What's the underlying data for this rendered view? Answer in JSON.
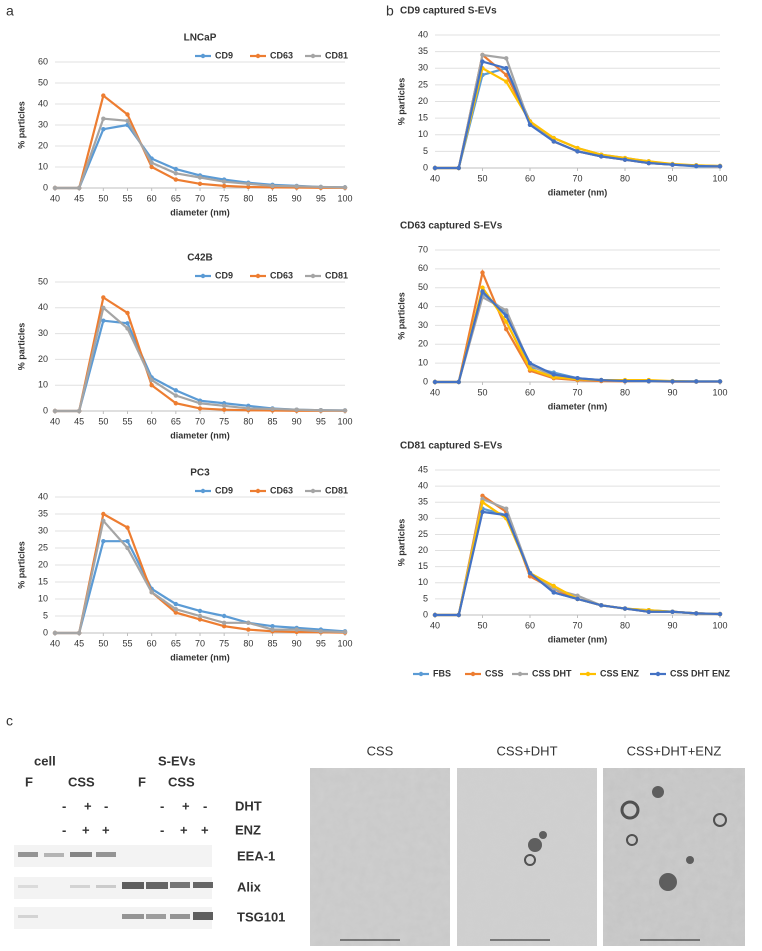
{
  "panel_labels": [
    "a",
    "b",
    "c"
  ],
  "chart_data": [
    {
      "type": "line",
      "title": "LNCaP",
      "xlabel": "diameter (nm)",
      "ylabel": "% particles",
      "legend": "top-right",
      "x": [
        40,
        45,
        50,
        55,
        60,
        65,
        70,
        75,
        80,
        85,
        90,
        95,
        100
      ],
      "xlim": [
        40,
        100
      ],
      "xticks": [
        40,
        45,
        50,
        55,
        60,
        65,
        70,
        75,
        80,
        85,
        90,
        95,
        100
      ],
      "ylim": [
        0,
        60
      ],
      "yticks": [
        0,
        10,
        20,
        30,
        40,
        50,
        60
      ],
      "series": [
        {
          "name": "CD9",
          "color": "#5b9bd5",
          "values": [
            0,
            0,
            28,
            30,
            14,
            9,
            6,
            4,
            2.5,
            1.5,
            1,
            0.5,
            0.3
          ]
        },
        {
          "name": "CD63",
          "color": "#ed7d31",
          "values": [
            0,
            0,
            44,
            35,
            10,
            4,
            2,
            1,
            0.5,
            0.3,
            0.2,
            0.1,
            0.1
          ]
        },
        {
          "name": "CD81",
          "color": "#a5a5a5",
          "values": [
            0,
            0,
            33,
            32,
            12,
            7,
            5,
            3,
            2,
            1,
            0.8,
            0.5,
            0.3
          ]
        }
      ]
    },
    {
      "type": "line",
      "title": "C42B",
      "xlabel": "diameter (nm)",
      "ylabel": "% particles",
      "legend": "top-right",
      "x": [
        40,
        45,
        50,
        55,
        60,
        65,
        70,
        75,
        80,
        85,
        90,
        95,
        100
      ],
      "xlim": [
        40,
        100
      ],
      "xticks": [
        40,
        45,
        50,
        55,
        60,
        65,
        70,
        75,
        80,
        85,
        90,
        95,
        100
      ],
      "ylim": [
        0,
        50
      ],
      "yticks": [
        0,
        10,
        20,
        30,
        40,
        50
      ],
      "series": [
        {
          "name": "CD9",
          "color": "#5b9bd5",
          "values": [
            0,
            0,
            35,
            34,
            13,
            8,
            4,
            3,
            2,
            1,
            0.5,
            0.3,
            0.2
          ]
        },
        {
          "name": "CD63",
          "color": "#ed7d31",
          "values": [
            0,
            0,
            44,
            38,
            10,
            3,
            1,
            0.5,
            0.3,
            0.2,
            0.1,
            0.1,
            0.1
          ]
        },
        {
          "name": "CD81",
          "color": "#a5a5a5",
          "values": [
            0,
            0,
            40,
            32,
            12,
            6,
            3,
            2,
            1,
            0.8,
            0.5,
            0.3,
            0.2
          ]
        }
      ]
    },
    {
      "type": "line",
      "title": "PC3",
      "xlabel": "diameter (nm)",
      "ylabel": "% particles",
      "legend": "top-right",
      "x": [
        40,
        45,
        50,
        55,
        60,
        65,
        70,
        75,
        80,
        85,
        90,
        95,
        100
      ],
      "xlim": [
        40,
        100
      ],
      "xticks": [
        40,
        45,
        50,
        55,
        60,
        65,
        70,
        75,
        80,
        85,
        90,
        95,
        100
      ],
      "ylim": [
        0,
        40
      ],
      "yticks": [
        0,
        5,
        10,
        15,
        20,
        25,
        30,
        35,
        40
      ],
      "series": [
        {
          "name": "CD9",
          "color": "#5b9bd5",
          "values": [
            0,
            0,
            27,
            27,
            13,
            8.5,
            6.5,
            5,
            3,
            2,
            1.5,
            1,
            0.5
          ]
        },
        {
          "name": "CD63",
          "color": "#ed7d31",
          "values": [
            0,
            0,
            35,
            31,
            12,
            6,
            4,
            2,
            1,
            0.5,
            0.3,
            0.2,
            0.1
          ]
        },
        {
          "name": "CD81",
          "color": "#a5a5a5",
          "values": [
            0,
            0,
            33,
            25,
            12,
            7,
            5,
            3,
            3,
            1,
            1,
            0.5,
            0.3
          ]
        }
      ]
    },
    {
      "type": "line",
      "title": "CD9 captured S-EVs",
      "xlabel": "diameter (nm)",
      "ylabel": "% particles",
      "x": [
        40,
        45,
        50,
        55,
        60,
        65,
        70,
        75,
        80,
        85,
        90,
        95,
        100
      ],
      "xlim": [
        40,
        100
      ],
      "xticks": [
        40,
        50,
        60,
        70,
        80,
        90,
        100
      ],
      "ylim": [
        0,
        40
      ],
      "yticks": [
        0,
        5,
        10,
        15,
        20,
        25,
        30,
        35,
        40
      ],
      "series": [
        {
          "color": "#5b9bd5",
          "values": [
            0,
            0,
            28,
            30,
            14,
            8,
            5,
            3.5,
            2.5,
            1.5,
            1,
            0.5,
            0.5
          ]
        },
        {
          "color": "#ed7d31",
          "values": [
            0,
            0,
            34,
            28,
            14,
            8,
            5,
            3.5,
            2.5,
            1.5,
            1,
            0.7,
            0.5
          ]
        },
        {
          "color": "#a5a5a5",
          "values": [
            0,
            0,
            34,
            33,
            13,
            9,
            6,
            4,
            3,
            2,
            1,
            0.8,
            0.6
          ]
        },
        {
          "color": "#ffc000",
          "values": [
            0,
            0,
            30,
            26,
            14,
            9,
            6,
            4,
            3,
            2,
            1.2,
            0.8,
            0.6
          ]
        },
        {
          "color": "#4472c4",
          "values": [
            0,
            0,
            32,
            30,
            13,
            8,
            5,
            3.5,
            2.5,
            1.5,
            1,
            0.6,
            0.5
          ]
        }
      ]
    },
    {
      "type": "line",
      "title": "CD63 captured S-EVs",
      "xlabel": "diameter (nm)",
      "ylabel": "% particles",
      "x": [
        40,
        45,
        50,
        55,
        60,
        65,
        70,
        75,
        80,
        85,
        90,
        95,
        100
      ],
      "xlim": [
        40,
        100
      ],
      "xticks": [
        40,
        50,
        60,
        70,
        80,
        90,
        100
      ],
      "ylim": [
        0,
        70
      ],
      "yticks": [
        0,
        10,
        20,
        30,
        40,
        50,
        60,
        70
      ],
      "series": [
        {
          "color": "#5b9bd5",
          "values": [
            0,
            0,
            47,
            37,
            8,
            5,
            2,
            1,
            0.5,
            0.5,
            0.3,
            0.3,
            0.3
          ]
        },
        {
          "color": "#ed7d31",
          "values": [
            0,
            0,
            58,
            28,
            6,
            2,
            1,
            0.5,
            0.3,
            0.3,
            0.2,
            0.2,
            0.2
          ]
        },
        {
          "color": "#a5a5a5",
          "values": [
            0,
            0,
            45,
            38,
            9,
            3,
            1.5,
            1,
            0.5,
            0.3,
            0.3,
            0.2,
            0.2
          ]
        },
        {
          "color": "#ffc000",
          "values": [
            0,
            0,
            50,
            32,
            7,
            2.5,
            1.5,
            1,
            1,
            1,
            0.5,
            0.3,
            0.3
          ]
        },
        {
          "color": "#4472c4",
          "values": [
            0,
            0,
            48,
            35,
            10,
            4,
            2,
            1,
            0.5,
            0.5,
            0.3,
            0.3,
            0.3
          ]
        }
      ]
    },
    {
      "type": "line",
      "title": "CD81 captured S-EVs",
      "xlabel": "diameter (nm)",
      "ylabel": "% particles",
      "x": [
        40,
        45,
        50,
        55,
        60,
        65,
        70,
        75,
        80,
        85,
        90,
        95,
        100
      ],
      "xlim": [
        40,
        100
      ],
      "xticks": [
        40,
        50,
        60,
        70,
        80,
        90,
        100
      ],
      "ylim": [
        0,
        45
      ],
      "yticks": [
        0,
        5,
        10,
        15,
        20,
        25,
        30,
        35,
        40,
        45
      ],
      "series": [
        {
          "color": "#5b9bd5",
          "values": [
            0,
            0,
            33,
            31,
            13,
            7,
            5,
            3,
            2,
            1.5,
            1,
            0.5,
            0.3
          ]
        },
        {
          "color": "#ed7d31",
          "values": [
            0,
            0,
            37,
            32,
            12,
            8,
            5,
            3,
            2,
            1,
            1,
            0.5,
            0.3
          ]
        },
        {
          "color": "#a5a5a5",
          "values": [
            0,
            0,
            36,
            33,
            13,
            8,
            6,
            3,
            2,
            1,
            1,
            0.5,
            0.3
          ]
        },
        {
          "color": "#ffc000",
          "values": [
            0,
            0,
            35,
            30,
            13,
            9,
            5,
            3,
            2,
            1.5,
            1,
            0.5,
            0.3
          ]
        },
        {
          "color": "#4472c4",
          "values": [
            0,
            0,
            32,
            31,
            13,
            7,
            5,
            3,
            2,
            1,
            1,
            0.5,
            0.3
          ]
        }
      ]
    }
  ],
  "shared_legend": [
    {
      "name": "FBS",
      "color": "#5b9bd5"
    },
    {
      "name": "CSS",
      "color": "#ed7d31"
    },
    {
      "name": "CSS DHT",
      "color": "#a5a5a5"
    },
    {
      "name": "CSS ENZ",
      "color": "#ffc000"
    },
    {
      "name": "CSS DHT ENZ",
      "color": "#4472c4"
    }
  ],
  "blot": {
    "groups": [
      "cell",
      "S-EVs"
    ],
    "conditions": [
      "F",
      "CSS",
      "F",
      "CSS"
    ],
    "treatments": [
      {
        "label": "DHT",
        "signs": [
          "-",
          "+",
          "-",
          "-",
          "+",
          "-"
        ]
      },
      {
        "label": "ENZ",
        "signs": [
          "-",
          "+",
          "+",
          "-",
          "+",
          "+"
        ]
      }
    ],
    "bands": [
      "EEA-1",
      "Alix",
      "TSG101"
    ]
  },
  "em_images": [
    "CSS",
    "CSS+DHT",
    "CSS+DHT+ENZ"
  ]
}
